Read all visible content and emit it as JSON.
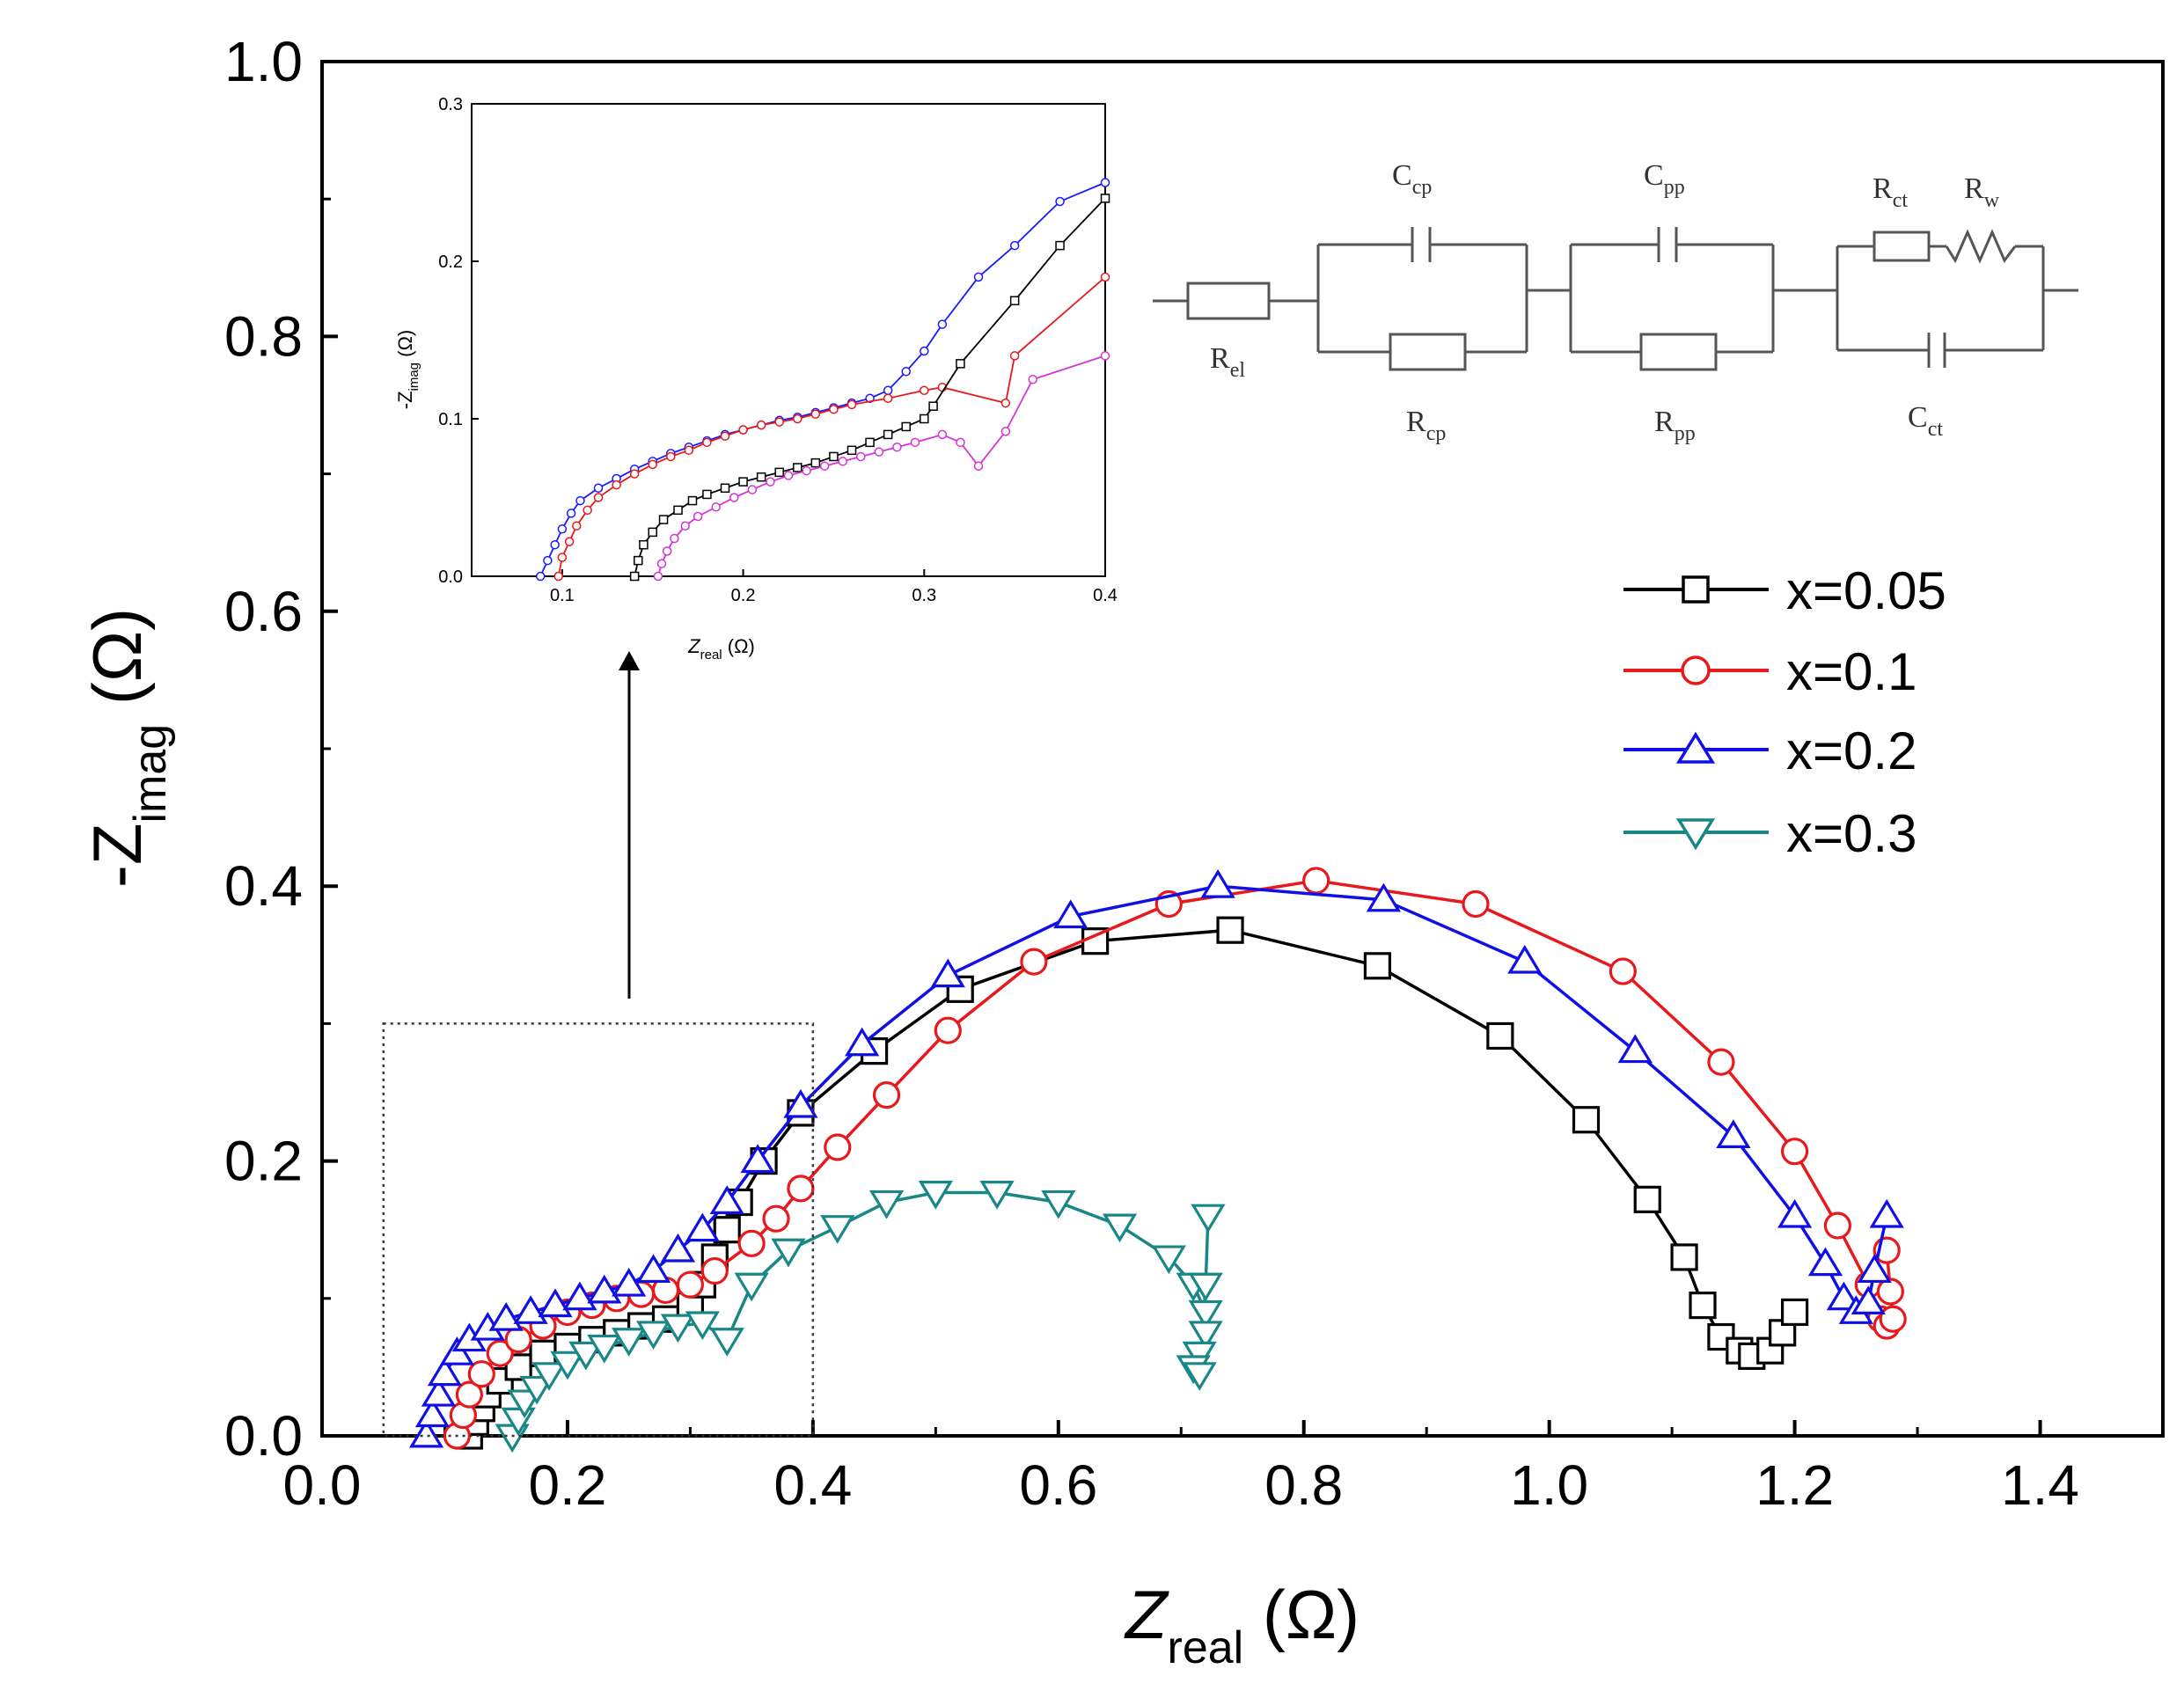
{
  "chart_data": {
    "type": "scatter",
    "title": "",
    "xlabel": "Z",
    "xlabel_sub": "real",
    "xlabel_unit": " (Ω)",
    "ylabel": "-Z",
    "ylabel_sub": "imag",
    "ylabel_unit": " (Ω)",
    "xlim": [
      0.0,
      1.5
    ],
    "ylim": [
      0.0,
      1.0
    ],
    "xticks": [
      "0.0",
      "0.2",
      "0.4",
      "0.6",
      "0.8",
      "1.0",
      "1.2",
      "1.4"
    ],
    "yticks": [
      "0.0",
      "0.2",
      "0.4",
      "0.6",
      "0.8",
      "1.0"
    ],
    "legend_position": "right",
    "series": [
      {
        "name": "x=0.05",
        "color": "#000000",
        "marker": "square",
        "points": [
          [
            0.12,
            0.0
          ],
          [
            0.125,
            0.01
          ],
          [
            0.13,
            0.02
          ],
          [
            0.135,
            0.03
          ],
          [
            0.145,
            0.04
          ],
          [
            0.16,
            0.05
          ],
          [
            0.18,
            0.06
          ],
          [
            0.2,
            0.065
          ],
          [
            0.22,
            0.07
          ],
          [
            0.24,
            0.075
          ],
          [
            0.26,
            0.08
          ],
          [
            0.28,
            0.085
          ],
          [
            0.3,
            0.095
          ],
          [
            0.31,
            0.11
          ],
          [
            0.32,
            0.13
          ],
          [
            0.33,
            0.15
          ],
          [
            0.34,
            0.17
          ],
          [
            0.36,
            0.2
          ],
          [
            0.39,
            0.235
          ],
          [
            0.45,
            0.28
          ],
          [
            0.52,
            0.325
          ],
          [
            0.63,
            0.36
          ],
          [
            0.74,
            0.368
          ],
          [
            0.86,
            0.342
          ],
          [
            0.96,
            0.291
          ],
          [
            1.03,
            0.23
          ],
          [
            1.08,
            0.172
          ],
          [
            1.11,
            0.13
          ],
          [
            1.125,
            0.095
          ],
          [
            1.14,
            0.072
          ],
          [
            1.155,
            0.062
          ],
          [
            1.165,
            0.058
          ],
          [
            1.18,
            0.062
          ],
          [
            1.19,
            0.075
          ],
          [
            1.2,
            0.09
          ]
        ]
      },
      {
        "name": "x=0.1",
        "color": "#e8191d",
        "marker": "circle",
        "points": [
          [
            0.11,
            0.0
          ],
          [
            0.115,
            0.015
          ],
          [
            0.12,
            0.03
          ],
          [
            0.13,
            0.045
          ],
          [
            0.145,
            0.06
          ],
          [
            0.16,
            0.07
          ],
          [
            0.18,
            0.08
          ],
          [
            0.2,
            0.09
          ],
          [
            0.22,
            0.095
          ],
          [
            0.24,
            0.1
          ],
          [
            0.26,
            0.103
          ],
          [
            0.28,
            0.106
          ],
          [
            0.3,
            0.11
          ],
          [
            0.32,
            0.12
          ],
          [
            0.35,
            0.14
          ],
          [
            0.37,
            0.158
          ],
          [
            0.39,
            0.18
          ],
          [
            0.42,
            0.21
          ],
          [
            0.46,
            0.248
          ],
          [
            0.51,
            0.295
          ],
          [
            0.58,
            0.345
          ],
          [
            0.69,
            0.387
          ],
          [
            0.81,
            0.404
          ],
          [
            0.94,
            0.387
          ],
          [
            1.06,
            0.338
          ],
          [
            1.14,
            0.272
          ],
          [
            1.2,
            0.207
          ],
          [
            1.235,
            0.153
          ],
          [
            1.26,
            0.11
          ],
          [
            1.27,
            0.085
          ],
          [
            1.275,
            0.08
          ],
          [
            1.28,
            0.085
          ],
          [
            1.278,
            0.105
          ],
          [
            1.275,
            0.135
          ]
        ]
      },
      {
        "name": "x=0.2",
        "color": "#0f0fe6",
        "marker": "triangle-up",
        "points": [
          [
            0.085,
            0.0
          ],
          [
            0.09,
            0.015
          ],
          [
            0.095,
            0.03
          ],
          [
            0.1,
            0.045
          ],
          [
            0.11,
            0.06
          ],
          [
            0.12,
            0.07
          ],
          [
            0.135,
            0.078
          ],
          [
            0.15,
            0.085
          ],
          [
            0.17,
            0.09
          ],
          [
            0.19,
            0.095
          ],
          [
            0.21,
            0.1
          ],
          [
            0.23,
            0.105
          ],
          [
            0.25,
            0.11
          ],
          [
            0.27,
            0.12
          ],
          [
            0.29,
            0.135
          ],
          [
            0.31,
            0.15
          ],
          [
            0.33,
            0.17
          ],
          [
            0.355,
            0.2
          ],
          [
            0.39,
            0.24
          ],
          [
            0.44,
            0.285
          ],
          [
            0.51,
            0.335
          ],
          [
            0.61,
            0.378
          ],
          [
            0.73,
            0.4
          ],
          [
            0.865,
            0.39
          ],
          [
            0.98,
            0.345
          ],
          [
            1.07,
            0.28
          ],
          [
            1.15,
            0.218
          ],
          [
            1.2,
            0.16
          ],
          [
            1.225,
            0.125
          ],
          [
            1.24,
            0.1
          ],
          [
            1.25,
            0.09
          ],
          [
            1.26,
            0.097
          ],
          [
            1.265,
            0.12
          ],
          [
            1.275,
            0.16
          ]
        ]
      },
      {
        "name": "x=0.3",
        "color": "#1a8787",
        "marker": "triangle-down",
        "points": [
          [
            0.155,
            0.0
          ],
          [
            0.16,
            0.012
          ],
          [
            0.165,
            0.025
          ],
          [
            0.175,
            0.035
          ],
          [
            0.185,
            0.045
          ],
          [
            0.2,
            0.053
          ],
          [
            0.215,
            0.06
          ],
          [
            0.23,
            0.065
          ],
          [
            0.25,
            0.07
          ],
          [
            0.27,
            0.075
          ],
          [
            0.29,
            0.08
          ],
          [
            0.31,
            0.082
          ],
          [
            0.33,
            0.07
          ],
          [
            0.35,
            0.11
          ],
          [
            0.38,
            0.135
          ],
          [
            0.42,
            0.152
          ],
          [
            0.46,
            0.17
          ],
          [
            0.5,
            0.177
          ],
          [
            0.55,
            0.177
          ],
          [
            0.6,
            0.17
          ],
          [
            0.65,
            0.153
          ],
          [
            0.69,
            0.13
          ],
          [
            0.71,
            0.11
          ],
          [
            0.72,
            0.09
          ],
          [
            0.72,
            0.075
          ],
          [
            0.715,
            0.06
          ],
          [
            0.71,
            0.05
          ],
          [
            0.715,
            0.045
          ],
          [
            0.72,
            0.11
          ],
          [
            0.722,
            0.16
          ]
        ]
      }
    ],
    "zoom_region": {
      "xlim": [
        0.05,
        0.4
      ],
      "ylim": [
        0.0,
        0.3
      ]
    },
    "inset": {
      "xlabel": "Z",
      "xlabel_sub": "real",
      "xlabel_unit": " (Ω)",
      "ylabel": "-Z",
      "ylabel_sub": "imag",
      "ylabel_unit": " (Ω)",
      "xlim": [
        0.05,
        0.4
      ],
      "ylim": [
        0.0,
        0.3
      ],
      "xticks": [
        "0.1",
        "0.2",
        "0.3",
        "0.4"
      ],
      "yticks": [
        "0.0",
        "0.1",
        "0.2",
        "0.3"
      ],
      "series": [
        {
          "name": "blue",
          "color": "#1a1aff",
          "marker": "circle",
          "points": [
            [
              0.088,
              0.0
            ],
            [
              0.092,
              0.01
            ],
            [
              0.096,
              0.02
            ],
            [
              0.1,
              0.03
            ],
            [
              0.105,
              0.04
            ],
            [
              0.11,
              0.048
            ],
            [
              0.12,
              0.056
            ],
            [
              0.13,
              0.062
            ],
            [
              0.14,
              0.068
            ],
            [
              0.15,
              0.073
            ],
            [
              0.16,
              0.078
            ],
            [
              0.17,
              0.082
            ],
            [
              0.18,
              0.086
            ],
            [
              0.19,
              0.09
            ],
            [
              0.2,
              0.093
            ],
            [
              0.21,
              0.096
            ],
            [
              0.22,
              0.099
            ],
            [
              0.23,
              0.101
            ],
            [
              0.24,
              0.104
            ],
            [
              0.25,
              0.107
            ],
            [
              0.26,
              0.11
            ],
            [
              0.27,
              0.113
            ],
            [
              0.28,
              0.118
            ],
            [
              0.29,
              0.13
            ],
            [
              0.3,
              0.143
            ],
            [
              0.31,
              0.16
            ],
            [
              0.33,
              0.19
            ],
            [
              0.35,
              0.21
            ],
            [
              0.375,
              0.238
            ],
            [
              0.4,
              0.25
            ]
          ]
        },
        {
          "name": "red",
          "color": "#e8191d",
          "marker": "circle",
          "points": [
            [
              0.098,
              0.0
            ],
            [
              0.1,
              0.012
            ],
            [
              0.104,
              0.022
            ],
            [
              0.108,
              0.032
            ],
            [
              0.114,
              0.042
            ],
            [
              0.12,
              0.05
            ],
            [
              0.13,
              0.058
            ],
            [
              0.14,
              0.065
            ],
            [
              0.15,
              0.071
            ],
            [
              0.16,
              0.076
            ],
            [
              0.17,
              0.08
            ],
            [
              0.18,
              0.085
            ],
            [
              0.19,
              0.089
            ],
            [
              0.2,
              0.093
            ],
            [
              0.21,
              0.096
            ],
            [
              0.22,
              0.098
            ],
            [
              0.23,
              0.1
            ],
            [
              0.24,
              0.103
            ],
            [
              0.25,
              0.106
            ],
            [
              0.26,
              0.109
            ],
            [
              0.28,
              0.113
            ],
            [
              0.3,
              0.118
            ],
            [
              0.31,
              0.12
            ],
            [
              0.345,
              0.11
            ],
            [
              0.35,
              0.14
            ],
            [
              0.4,
              0.19
            ]
          ]
        },
        {
          "name": "black",
          "color": "#000000",
          "marker": "square",
          "points": [
            [
              0.14,
              0.0
            ],
            [
              0.142,
              0.01
            ],
            [
              0.145,
              0.02
            ],
            [
              0.15,
              0.028
            ],
            [
              0.156,
              0.036
            ],
            [
              0.164,
              0.042
            ],
            [
              0.172,
              0.048
            ],
            [
              0.18,
              0.052
            ],
            [
              0.19,
              0.056
            ],
            [
              0.2,
              0.06
            ],
            [
              0.21,
              0.063
            ],
            [
              0.22,
              0.066
            ],
            [
              0.23,
              0.069
            ],
            [
              0.24,
              0.072
            ],
            [
              0.25,
              0.076
            ],
            [
              0.26,
              0.08
            ],
            [
              0.27,
              0.085
            ],
            [
              0.28,
              0.09
            ],
            [
              0.29,
              0.095
            ],
            [
              0.3,
              0.1
            ],
            [
              0.305,
              0.108
            ],
            [
              0.32,
              0.135
            ],
            [
              0.35,
              0.175
            ],
            [
              0.375,
              0.21
            ],
            [
              0.4,
              0.24
            ]
          ]
        },
        {
          "name": "magenta",
          "color": "#d633d6",
          "marker": "circle",
          "points": [
            [
              0.153,
              0.0
            ],
            [
              0.155,
              0.008
            ],
            [
              0.158,
              0.016
            ],
            [
              0.162,
              0.024
            ],
            [
              0.168,
              0.032
            ],
            [
              0.175,
              0.038
            ],
            [
              0.185,
              0.044
            ],
            [
              0.195,
              0.05
            ],
            [
              0.205,
              0.055
            ],
            [
              0.215,
              0.06
            ],
            [
              0.225,
              0.064
            ],
            [
              0.235,
              0.067
            ],
            [
              0.245,
              0.07
            ],
            [
              0.255,
              0.073
            ],
            [
              0.265,
              0.076
            ],
            [
              0.275,
              0.079
            ],
            [
              0.285,
              0.082
            ],
            [
              0.295,
              0.085
            ],
            [
              0.31,
              0.09
            ],
            [
              0.32,
              0.085
            ],
            [
              0.33,
              0.07
            ],
            [
              0.345,
              0.092
            ],
            [
              0.36,
              0.125
            ],
            [
              0.4,
              0.14
            ]
          ]
        }
      ]
    }
  },
  "circuit": {
    "labels": {
      "r_el": "R",
      "r_el_sub": "el",
      "c_cp": "C",
      "c_cp_sub": "cp",
      "r_cp": "R",
      "r_cp_sub": "cp",
      "c_pp": "C",
      "c_pp_sub": "pp",
      "r_pp": "R",
      "r_pp_sub": "pp",
      "r_ct": "R",
      "r_ct_sub": "ct",
      "r_w": "R",
      "r_w_sub": "w",
      "c_ct": "C",
      "c_ct_sub": "ct"
    }
  }
}
